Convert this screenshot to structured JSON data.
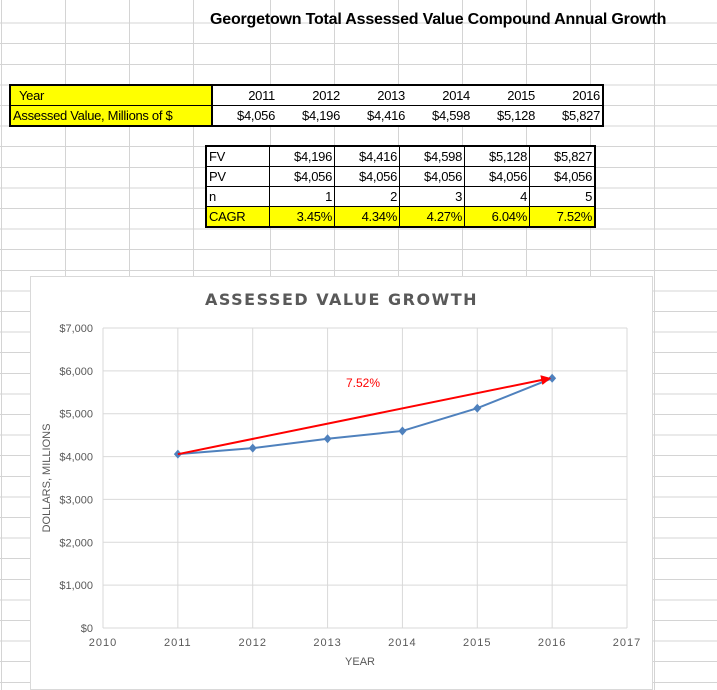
{
  "sheet_title": "Georgetown Total Assessed Value Compound Annual Growth",
  "table1": {
    "row_labels": [
      "Year",
      "Assessed Value, Millions of $"
    ],
    "years": [
      "2011",
      "2012",
      "2013",
      "2014",
      "2015",
      "2016"
    ],
    "values": [
      "$4,056",
      "$4,196",
      "$4,416",
      "$4,598",
      "$5,128",
      "$5,827"
    ]
  },
  "table2": {
    "rows": [
      {
        "label": "FV",
        "cells": [
          "$4,196",
          "$4,416",
          "$4,598",
          "$5,128",
          "$5,827"
        ]
      },
      {
        "label": "PV",
        "cells": [
          "$4,056",
          "$4,056",
          "$4,056",
          "$4,056",
          "$4,056"
        ]
      },
      {
        "label": "n",
        "cells": [
          "1",
          "2",
          "3",
          "4",
          "5"
        ]
      },
      {
        "label": "CAGR",
        "cells": [
          "3.45%",
          "4.34%",
          "4.27%",
          "6.04%",
          "7.52%"
        ]
      }
    ]
  },
  "chart_data": {
    "type": "scatter",
    "title": "ASSESSED VALUE GROWTH",
    "xlabel": "YEAR",
    "ylabel": "DOLLARS, MILLIONS",
    "xlim": [
      2010,
      2017
    ],
    "ylim": [
      0,
      7000
    ],
    "x_ticks": [
      "2010",
      "2011",
      "2012",
      "2013",
      "2014",
      "2015",
      "2016",
      "2017"
    ],
    "y_ticks": [
      "$0",
      "$1,000",
      "$2,000",
      "$3,000",
      "$4,000",
      "$5,000",
      "$6,000",
      "$7,000"
    ],
    "grid": true,
    "series": [
      {
        "x": [
          2011,
          2012,
          2013,
          2014,
          2015,
          2016
        ],
        "y": [
          4056,
          4196,
          4416,
          4598,
          5128,
          5827
        ],
        "color": "#4f81bd",
        "marker": "diamond"
      }
    ],
    "annotation": {
      "text": "7.52%",
      "color": "#ff0000",
      "arrow_from": [
        2011,
        4056
      ],
      "arrow_to": [
        2016,
        5827
      ]
    }
  }
}
